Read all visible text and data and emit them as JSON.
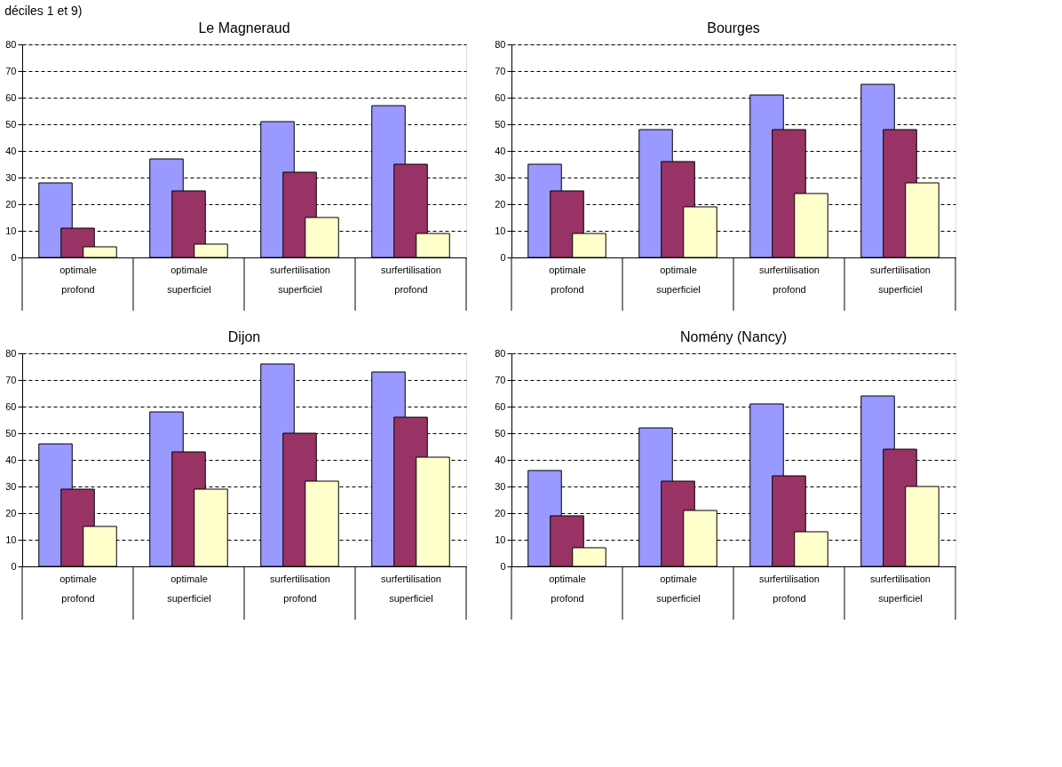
{
  "chart_data": [
    {
      "type": "bar",
      "title": "Le Magneraud",
      "annotations": [
        "déciles 1 et 9)"
      ],
      "categories": [
        "optimale\nprofond",
        "optimale\nsuperficiel",
        "surfertilisation\nsuperficiel",
        "surfertilisation\nprofond"
      ],
      "series": [
        {
          "color": "#9999ff",
          "values": [
            28,
            37,
            51,
            57
          ]
        },
        {
          "color": "#993366",
          "values": [
            11,
            25,
            32,
            35
          ]
        },
        {
          "color": "#ffffcc",
          "values": [
            4,
            5,
            15,
            9
          ]
        }
      ],
      "ylim": [
        0,
        80
      ],
      "yticks": [
        0,
        10,
        20,
        30,
        40,
        50,
        60,
        70,
        80
      ],
      "grid": "y",
      "line_style": "dashed"
    },
    {
      "type": "bar",
      "title": "Bourges",
      "categories": [
        "optimale\nprofond",
        "optimale\nsuperficiel",
        "surfertilisation\nprofond",
        "surfertilisation\nsuperficiel"
      ],
      "series": [
        {
          "color": "#9999ff",
          "values": [
            35,
            48,
            61,
            65
          ]
        },
        {
          "color": "#993366",
          "values": [
            25,
            36,
            48,
            48
          ]
        },
        {
          "color": "#ffffcc",
          "values": [
            9,
            19,
            24,
            28
          ]
        }
      ],
      "ylim": [
        0,
        80
      ],
      "yticks": [
        0,
        10,
        20,
        30,
        40,
        50,
        60,
        70,
        80
      ],
      "grid": "y",
      "line_style": "dashed"
    },
    {
      "type": "bar",
      "title": "Dijon",
      "categories": [
        "optimale\nprofond",
        "optimale\nsuperficiel",
        "surfertilisation\nprofond",
        "surfertilisation\nsuperficiel"
      ],
      "series": [
        {
          "color": "#9999ff",
          "values": [
            46,
            58,
            76,
            73
          ]
        },
        {
          "color": "#993366",
          "values": [
            29,
            43,
            50,
            56
          ]
        },
        {
          "color": "#ffffcc",
          "values": [
            15,
            29,
            32,
            41
          ]
        }
      ],
      "ylim": [
        0,
        80
      ],
      "yticks": [
        0,
        10,
        20,
        30,
        40,
        50,
        60,
        70,
        80
      ],
      "grid": "y",
      "line_style": "dashed"
    },
    {
      "type": "bar",
      "title": "Nomény (Nancy)",
      "categories": [
        "optimale\nprofond",
        "optimale\nsuperficiel",
        "surfertilisation\nprofond",
        "surfertilisation\nsuperficiel"
      ],
      "series": [
        {
          "color": "#9999ff",
          "values": [
            36,
            52,
            61,
            64
          ]
        },
        {
          "color": "#993366",
          "values": [
            19,
            32,
            34,
            44
          ]
        },
        {
          "color": "#ffffcc",
          "values": [
            7,
            21,
            13,
            30
          ]
        }
      ],
      "ylim": [
        0,
        80
      ],
      "yticks": [
        0,
        10,
        20,
        30,
        40,
        50,
        60,
        70,
        80
      ],
      "grid": "y",
      "line_style": "dashed"
    }
  ]
}
